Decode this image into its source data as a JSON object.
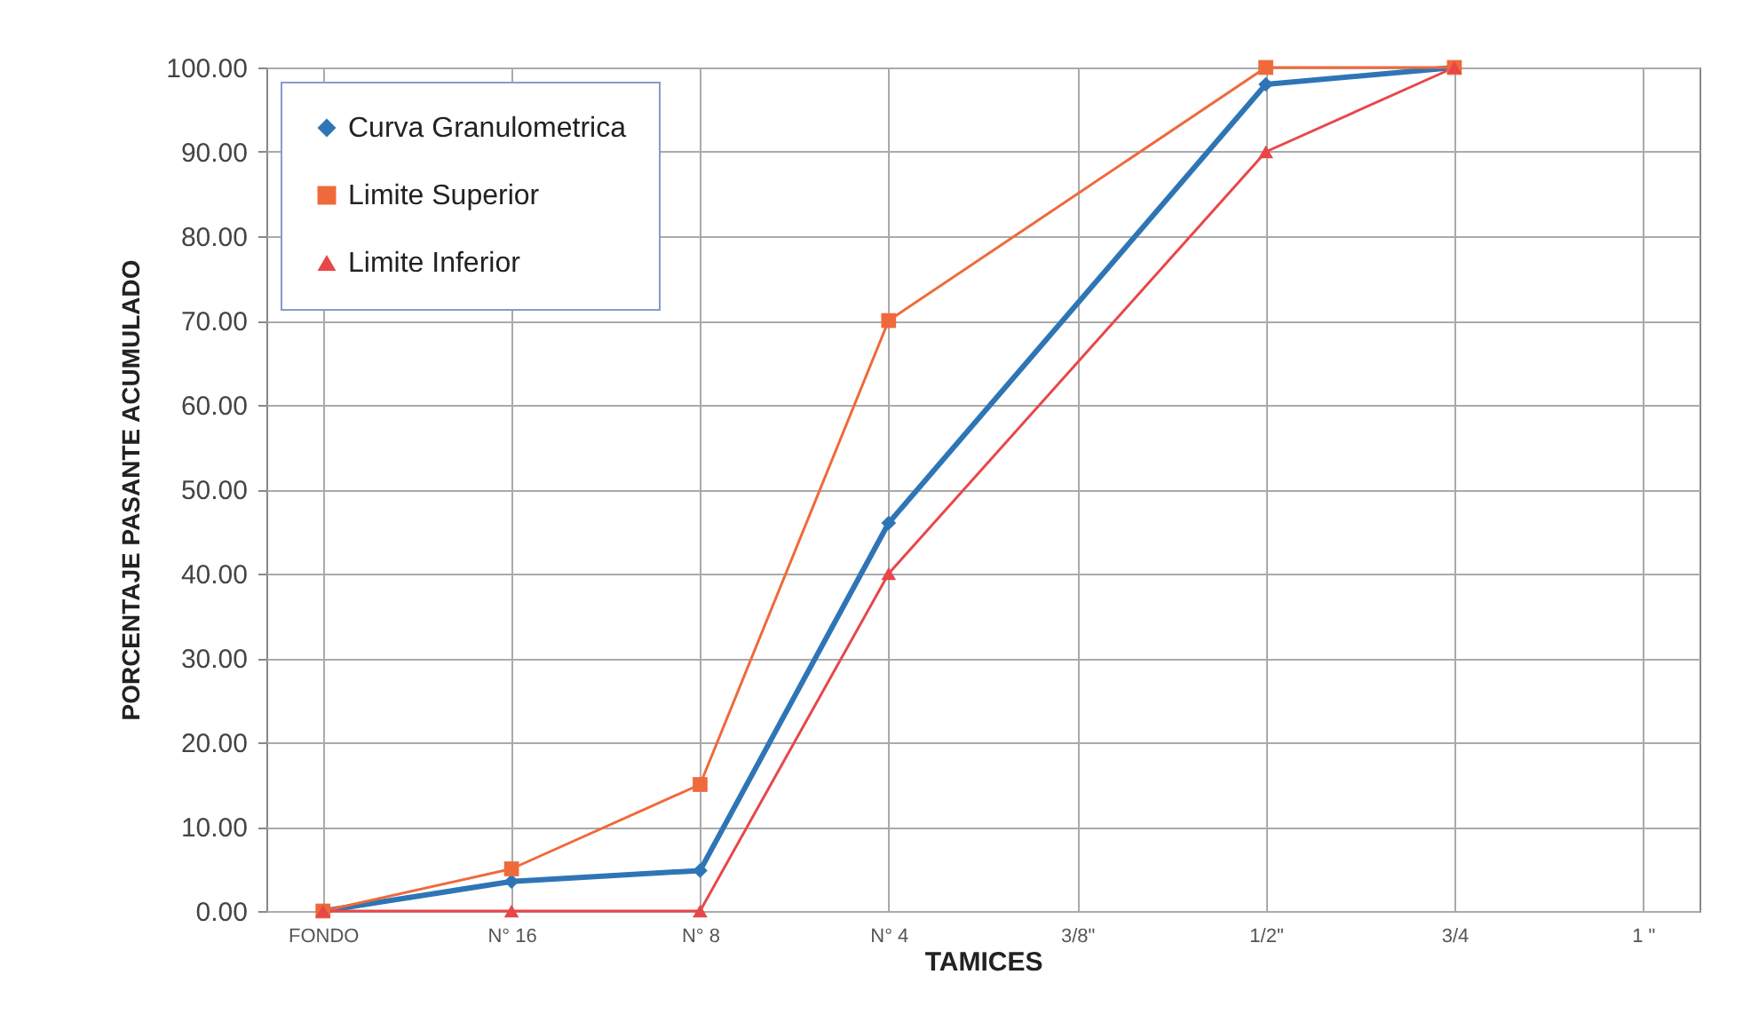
{
  "chart_data": {
    "type": "line",
    "xlabel": "TAMICES",
    "ylabel": "PORCENTAJE  PASANTE ACUMULADO",
    "categories": [
      "FONDO",
      "N° 16",
      "N° 8",
      "N° 4",
      "3/8\"",
      "1/2\"",
      "3/4",
      "1 \""
    ],
    "series": [
      {
        "name": "Curva Granulometrica",
        "color": "#2e75b6",
        "marker": "diamond",
        "values": [
          0,
          3.5,
          4.8,
          46,
          null,
          98,
          100,
          null
        ]
      },
      {
        "name": "Limite Superior",
        "color": "#ef6a3a",
        "marker": "square",
        "values": [
          0,
          5,
          15,
          70,
          null,
          100,
          100,
          null
        ]
      },
      {
        "name": "Limite Inferior",
        "color": "#e8474a",
        "marker": "triangle",
        "values": [
          0,
          0,
          0,
          40,
          null,
          90,
          100,
          null
        ]
      }
    ],
    "ylim": [
      0,
      100
    ],
    "yticks": [
      {
        "value": 0,
        "label": "0.00"
      },
      {
        "value": 10,
        "label": "10.00"
      },
      {
        "value": 20,
        "label": "20.00"
      },
      {
        "value": 30,
        "label": "30.00"
      },
      {
        "value": 40,
        "label": "40.00"
      },
      {
        "value": 50,
        "label": "50.00"
      },
      {
        "value": 60,
        "label": "60.00"
      },
      {
        "value": 70,
        "label": "70.00"
      },
      {
        "value": 80,
        "label": "80.00"
      },
      {
        "value": 90,
        "label": "90.00"
      },
      {
        "value": 100,
        "label": "100.00"
      }
    ],
    "grid": true,
    "legend": "top left"
  }
}
